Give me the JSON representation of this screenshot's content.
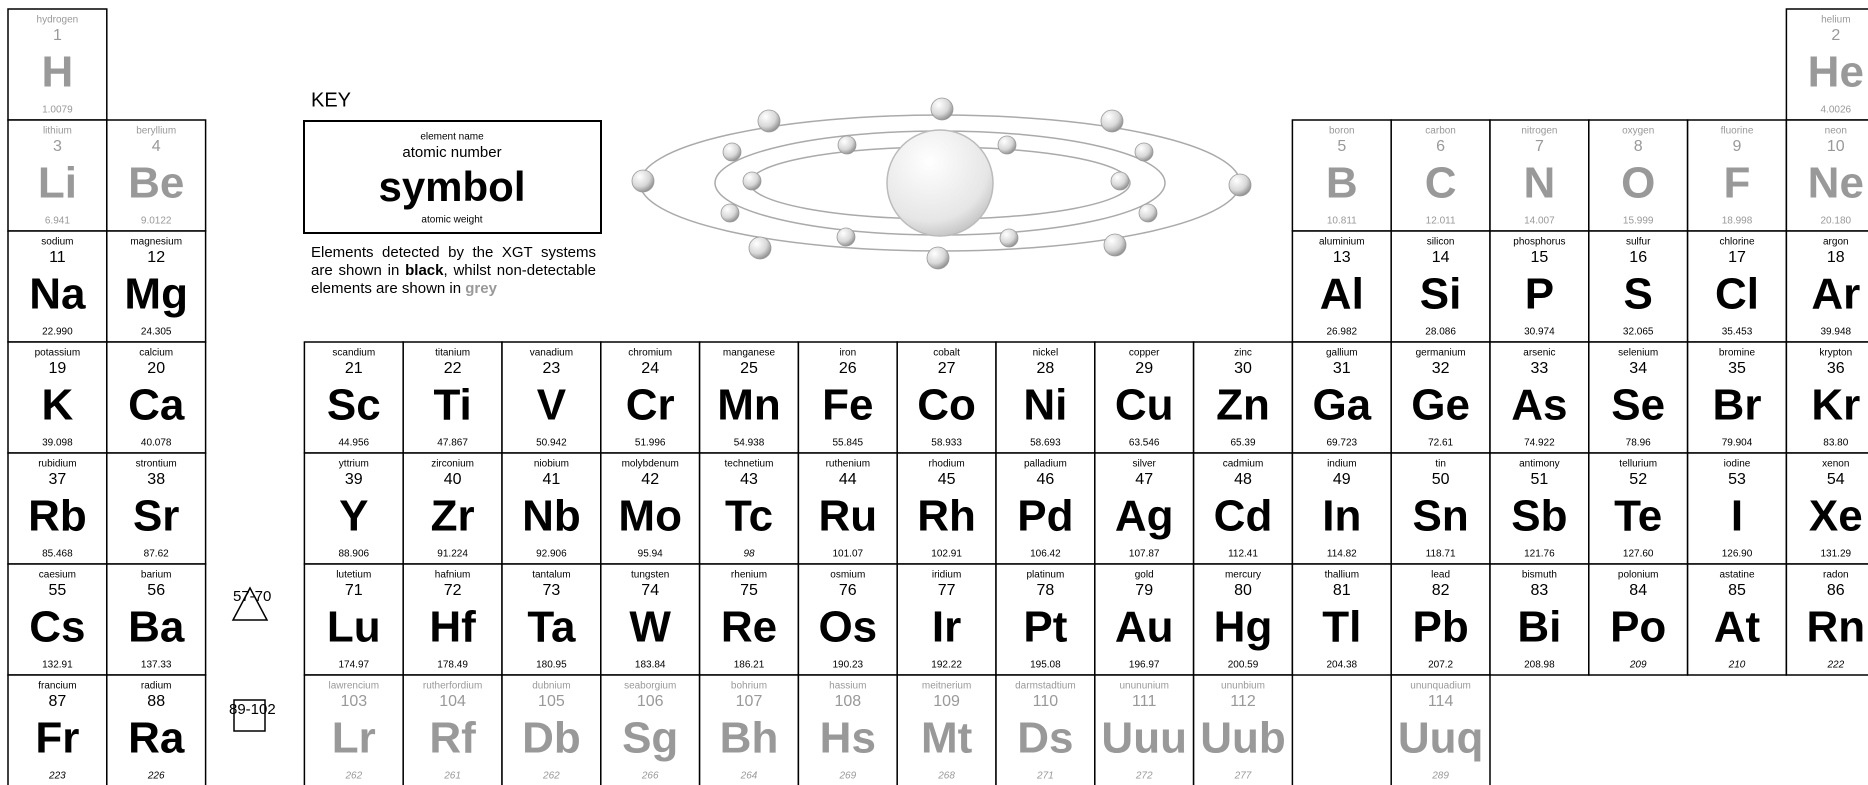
{
  "key": {
    "title": "KEY",
    "element_name": "element name",
    "atomic_number": "atomic number",
    "symbol": "symbol",
    "atomic_weight": "atomic weight",
    "note": [
      "Elements detected by the XGT systems are shown in ",
      "black",
      ", whilst non-detectable elements are shown in ",
      "grey"
    ]
  },
  "markers": {
    "lanthanides": "57-70",
    "actinides": "89-102"
  },
  "elements": [
    {
      "name": "hydrogen",
      "number": 1,
      "symbol": "H",
      "weight": "1.0079",
      "detected": false
    },
    {
      "name": "helium",
      "number": 2,
      "symbol": "He",
      "weight": "4.0026",
      "detected": false
    },
    {
      "name": "lithium",
      "number": 3,
      "symbol": "Li",
      "weight": "6.941",
      "detected": false
    },
    {
      "name": "beryllium",
      "number": 4,
      "symbol": "Be",
      "weight": "9.0122",
      "detected": false
    },
    {
      "name": "boron",
      "number": 5,
      "symbol": "B",
      "weight": "10.811",
      "detected": false
    },
    {
      "name": "carbon",
      "number": 6,
      "symbol": "C",
      "weight": "12.011",
      "detected": false
    },
    {
      "name": "nitrogen",
      "number": 7,
      "symbol": "N",
      "weight": "14.007",
      "detected": false
    },
    {
      "name": "oxygen",
      "number": 8,
      "symbol": "O",
      "weight": "15.999",
      "detected": false
    },
    {
      "name": "fluorine",
      "number": 9,
      "symbol": "F",
      "weight": "18.998",
      "detected": false
    },
    {
      "name": "neon",
      "number": 10,
      "symbol": "Ne",
      "weight": "20.180",
      "detected": false
    },
    {
      "name": "sodium",
      "number": 11,
      "symbol": "Na",
      "weight": "22.990",
      "detected": true
    },
    {
      "name": "magnesium",
      "number": 12,
      "symbol": "Mg",
      "weight": "24.305",
      "detected": true
    },
    {
      "name": "aluminium",
      "number": 13,
      "symbol": "Al",
      "weight": "26.982",
      "detected": true
    },
    {
      "name": "silicon",
      "number": 14,
      "symbol": "Si",
      "weight": "28.086",
      "detected": true
    },
    {
      "name": "phosphorus",
      "number": 15,
      "symbol": "P",
      "weight": "30.974",
      "detected": true
    },
    {
      "name": "sulfur",
      "number": 16,
      "symbol": "S",
      "weight": "32.065",
      "detected": true
    },
    {
      "name": "chlorine",
      "number": 17,
      "symbol": "Cl",
      "weight": "35.453",
      "detected": true
    },
    {
      "name": "argon",
      "number": 18,
      "symbol": "Ar",
      "weight": "39.948",
      "detected": true
    },
    {
      "name": "potassium",
      "number": 19,
      "symbol": "K",
      "weight": "39.098",
      "detected": true
    },
    {
      "name": "calcium",
      "number": 20,
      "symbol": "Ca",
      "weight": "40.078",
      "detected": true
    },
    {
      "name": "scandium",
      "number": 21,
      "symbol": "Sc",
      "weight": "44.956",
      "detected": true
    },
    {
      "name": "titanium",
      "number": 22,
      "symbol": "Ti",
      "weight": "47.867",
      "detected": true
    },
    {
      "name": "vanadium",
      "number": 23,
      "symbol": "V",
      "weight": "50.942",
      "detected": true
    },
    {
      "name": "chromium",
      "number": 24,
      "symbol": "Cr",
      "weight": "51.996",
      "detected": true
    },
    {
      "name": "manganese",
      "number": 25,
      "symbol": "Mn",
      "weight": "54.938",
      "detected": true
    },
    {
      "name": "iron",
      "number": 26,
      "symbol": "Fe",
      "weight": "55.845",
      "detected": true
    },
    {
      "name": "cobalt",
      "number": 27,
      "symbol": "Co",
      "weight": "58.933",
      "detected": true
    },
    {
      "name": "nickel",
      "number": 28,
      "symbol": "Ni",
      "weight": "58.693",
      "detected": true
    },
    {
      "name": "copper",
      "number": 29,
      "symbol": "Cu",
      "weight": "63.546",
      "detected": true
    },
    {
      "name": "zinc",
      "number": 30,
      "symbol": "Zn",
      "weight": "65.39",
      "detected": true
    },
    {
      "name": "gallium",
      "number": 31,
      "symbol": "Ga",
      "weight": "69.723",
      "detected": true
    },
    {
      "name": "germanium",
      "number": 32,
      "symbol": "Ge",
      "weight": "72.61",
      "detected": true
    },
    {
      "name": "arsenic",
      "number": 33,
      "symbol": "As",
      "weight": "74.922",
      "detected": true
    },
    {
      "name": "selenium",
      "number": 34,
      "symbol": "Se",
      "weight": "78.96",
      "detected": true
    },
    {
      "name": "bromine",
      "number": 35,
      "symbol": "Br",
      "weight": "79.904",
      "detected": true
    },
    {
      "name": "krypton",
      "number": 36,
      "symbol": "Kr",
      "weight": "83.80",
      "detected": true
    },
    {
      "name": "rubidium",
      "number": 37,
      "symbol": "Rb",
      "weight": "85.468",
      "detected": true
    },
    {
      "name": "strontium",
      "number": 38,
      "symbol": "Sr",
      "weight": "87.62",
      "detected": true
    },
    {
      "name": "yttrium",
      "number": 39,
      "symbol": "Y",
      "weight": "88.906",
      "detected": true
    },
    {
      "name": "zirconium",
      "number": 40,
      "symbol": "Zr",
      "weight": "91.224",
      "detected": true
    },
    {
      "name": "niobium",
      "number": 41,
      "symbol": "Nb",
      "weight": "92.906",
      "detected": true
    },
    {
      "name": "molybdenum",
      "number": 42,
      "symbol": "Mo",
      "weight": "95.94",
      "detected": true
    },
    {
      "name": "technetium",
      "number": 43,
      "symbol": "Tc",
      "weight": "98",
      "detected": true,
      "italic": true
    },
    {
      "name": "ruthenium",
      "number": 44,
      "symbol": "Ru",
      "weight": "101.07",
      "detected": true
    },
    {
      "name": "rhodium",
      "number": 45,
      "symbol": "Rh",
      "weight": "102.91",
      "detected": true
    },
    {
      "name": "palladium",
      "number": 46,
      "symbol": "Pd",
      "weight": "106.42",
      "detected": true
    },
    {
      "name": "silver",
      "number": 47,
      "symbol": "Ag",
      "weight": "107.87",
      "detected": true
    },
    {
      "name": "cadmium",
      "number": 48,
      "symbol": "Cd",
      "weight": "112.41",
      "detected": true
    },
    {
      "name": "indium",
      "number": 49,
      "symbol": "In",
      "weight": "114.82",
      "detected": true
    },
    {
      "name": "tin",
      "number": 50,
      "symbol": "Sn",
      "weight": "118.71",
      "detected": true
    },
    {
      "name": "antimony",
      "number": 51,
      "symbol": "Sb",
      "weight": "121.76",
      "detected": true
    },
    {
      "name": "tellurium",
      "number": 52,
      "symbol": "Te",
      "weight": "127.60",
      "detected": true
    },
    {
      "name": "iodine",
      "number": 53,
      "symbol": "I",
      "weight": "126.90",
      "detected": true
    },
    {
      "name": "xenon",
      "number": 54,
      "symbol": "Xe",
      "weight": "131.29",
      "detected": true
    },
    {
      "name": "caesium",
      "number": 55,
      "symbol": "Cs",
      "weight": "132.91",
      "detected": true
    },
    {
      "name": "barium",
      "number": 56,
      "symbol": "Ba",
      "weight": "137.33",
      "detected": true
    },
    {
      "name": "lutetium",
      "number": 71,
      "symbol": "Lu",
      "weight": "174.97",
      "detected": true
    },
    {
      "name": "hafnium",
      "number": 72,
      "symbol": "Hf",
      "weight": "178.49",
      "detected": true
    },
    {
      "name": "tantalum",
      "number": 73,
      "symbol": "Ta",
      "weight": "180.95",
      "detected": true
    },
    {
      "name": "tungsten",
      "number": 74,
      "symbol": "W",
      "weight": "183.84",
      "detected": true
    },
    {
      "name": "rhenium",
      "number": 75,
      "symbol": "Re",
      "weight": "186.21",
      "detected": true
    },
    {
      "name": "osmium",
      "number": 76,
      "symbol": "Os",
      "weight": "190.23",
      "detected": true
    },
    {
      "name": "iridium",
      "number": 77,
      "symbol": "Ir",
      "weight": "192.22",
      "detected": true
    },
    {
      "name": "platinum",
      "number": 78,
      "symbol": "Pt",
      "weight": "195.08",
      "detected": true
    },
    {
      "name": "gold",
      "number": 79,
      "symbol": "Au",
      "weight": "196.97",
      "detected": true
    },
    {
      "name": "mercury",
      "number": 80,
      "symbol": "Hg",
      "weight": "200.59",
      "detected": true
    },
    {
      "name": "thallium",
      "number": 81,
      "symbol": "Tl",
      "weight": "204.38",
      "detected": true
    },
    {
      "name": "lead",
      "number": 82,
      "symbol": "Pb",
      "weight": "207.2",
      "detected": true
    },
    {
      "name": "bismuth",
      "number": 83,
      "symbol": "Bi",
      "weight": "208.98",
      "detected": true
    },
    {
      "name": "polonium",
      "number": 84,
      "symbol": "Po",
      "weight": "209",
      "detected": true,
      "italic": true
    },
    {
      "name": "astatine",
      "number": 85,
      "symbol": "At",
      "weight": "210",
      "detected": true,
      "italic": true
    },
    {
      "name": "radon",
      "number": 86,
      "symbol": "Rn",
      "weight": "222",
      "detected": true,
      "italic": true
    },
    {
      "name": "francium",
      "number": 87,
      "symbol": "Fr",
      "weight": "223",
      "detected": true,
      "italic": true
    },
    {
      "name": "radium",
      "number": 88,
      "symbol": "Ra",
      "weight": "226",
      "detected": true,
      "italic": true
    },
    {
      "name": "lawrencium",
      "number": 103,
      "symbol": "Lr",
      "weight": "262",
      "detected": false,
      "italic": true
    },
    {
      "name": "rutherfordium",
      "number": 104,
      "symbol": "Rf",
      "weight": "261",
      "detected": false,
      "italic": true
    },
    {
      "name": "dubnium",
      "number": 105,
      "symbol": "Db",
      "weight": "262",
      "detected": false,
      "italic": true
    },
    {
      "name": "seaborgium",
      "number": 106,
      "symbol": "Sg",
      "weight": "266",
      "detected": false,
      "italic": true
    },
    {
      "name": "bohrium",
      "number": 107,
      "symbol": "Bh",
      "weight": "264",
      "detected": false,
      "italic": true
    },
    {
      "name": "hassium",
      "number": 108,
      "symbol": "Hs",
      "weight": "269",
      "detected": false,
      "italic": true
    },
    {
      "name": "meitnerium",
      "number": 109,
      "symbol": "Mt",
      "weight": "268",
      "detected": false,
      "italic": true
    },
    {
      "name": "darmstadtium",
      "number": 110,
      "symbol": "Ds",
      "weight": "271",
      "detected": false,
      "italic": true
    },
    {
      "name": "unununium",
      "number": 111,
      "symbol": "Uuu",
      "weight": "272",
      "detected": false,
      "italic": true
    },
    {
      "name": "ununbium",
      "number": 112,
      "symbol": "Uub",
      "weight": "277",
      "detected": false,
      "italic": true
    },
    {
      "name": "ununquadium",
      "number": 114,
      "symbol": "Uuq",
      "weight": "289",
      "detected": false,
      "italic": true
    }
  ]
}
